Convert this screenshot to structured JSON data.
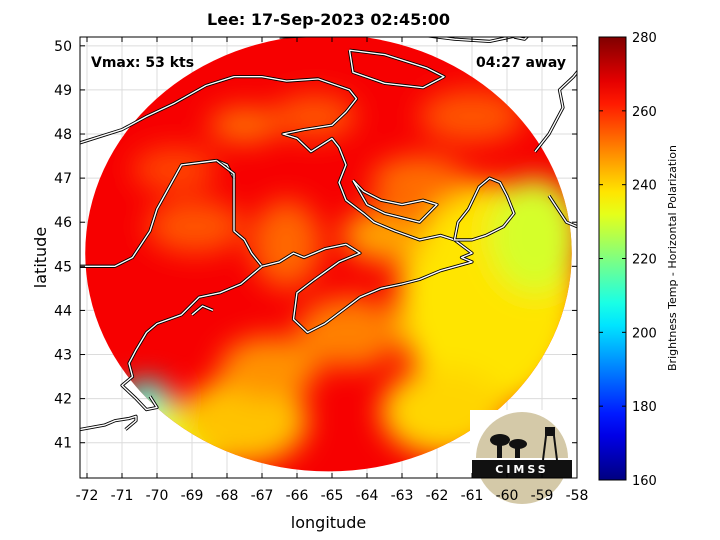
{
  "chart_data": {
    "type": "heatmap",
    "title": "Lee: 17-Sep-2023 02:45:00",
    "xlabel": "longitude",
    "ylabel": "latitude",
    "xlim": [
      -72.2,
      -58
    ],
    "ylim": [
      40.2,
      50.2
    ],
    "xticks": [
      -72,
      -71,
      -70,
      -69,
      -68,
      -67,
      -66,
      -65,
      -64,
      -63,
      -62,
      -61,
      -60,
      -59,
      -58
    ],
    "yticks": [
      41,
      42,
      43,
      44,
      45,
      46,
      47,
      48,
      49,
      50
    ],
    "grid": true,
    "annotations": {
      "left": "Vmax: 53 kts",
      "right": "04:27 away"
    },
    "colorbar": {
      "label": "Brightness Temp - Horizontal Polarization",
      "range": [
        160,
        280
      ],
      "ticks": [
        160,
        180,
        200,
        220,
        240,
        260,
        280
      ],
      "colormap": "jet",
      "placement": "right"
    },
    "swath": {
      "center_lon": -65.1,
      "center_lat": 45.3,
      "radius_lon": 6.95,
      "radius_lat": 4.95
    },
    "field_blobs": [
      {
        "lon": -70.3,
        "lat": 41.9,
        "r_lon": 0.7,
        "r_lat": 0.5,
        "value": 208
      },
      {
        "lon": -69.2,
        "lat": 41.1,
        "r_lon": 1.6,
        "r_lat": 0.8,
        "value": 232
      },
      {
        "lon": -67.5,
        "lat": 41.5,
        "r_lon": 1.8,
        "r_lat": 1.0,
        "value": 242
      },
      {
        "lon": -60.5,
        "lat": 44.3,
        "r_lon": 2.6,
        "r_lat": 2.6,
        "value": 238
      },
      {
        "lon": -59.2,
        "lat": 45.7,
        "r_lon": 1.3,
        "r_lat": 1.3,
        "value": 230
      },
      {
        "lon": -61.8,
        "lat": 41.7,
        "r_lon": 1.8,
        "r_lat": 1.0,
        "value": 240
      },
      {
        "lon": -63.5,
        "lat": 45.7,
        "r_lon": 1.2,
        "r_lat": 0.6,
        "value": 246
      },
      {
        "lon": -66.3,
        "lat": 45.5,
        "r_lon": 1.0,
        "r_lat": 1.0,
        "value": 253
      },
      {
        "lon": -68.9,
        "lat": 45.9,
        "r_lon": 1.4,
        "r_lat": 0.6,
        "value": 255
      },
      {
        "lon": -67.5,
        "lat": 48.2,
        "r_lon": 1.0,
        "r_lat": 0.4,
        "value": 252
      },
      {
        "lon": -69.5,
        "lat": 47.2,
        "r_lon": 1.2,
        "r_lat": 0.5,
        "value": 257
      },
      {
        "lon": -62.5,
        "lat": 46.9,
        "r_lon": 1.4,
        "r_lat": 0.6,
        "value": 252
      },
      {
        "lon": -61.0,
        "lat": 48.4,
        "r_lon": 1.5,
        "r_lat": 0.6,
        "value": 255
      },
      {
        "lon": -65.5,
        "lat": 48.4,
        "r_lon": 1.2,
        "r_lat": 0.5,
        "value": 255
      },
      {
        "lon": -64.5,
        "lat": 43.5,
        "r_lon": 1.5,
        "r_lat": 0.8,
        "value": 250
      },
      {
        "lon": -66.8,
        "lat": 42.7,
        "r_lon": 1.4,
        "r_lat": 0.7,
        "value": 248
      }
    ],
    "field_base_value": 266,
    "coastlines": [
      [
        [
          -72.2,
          45.0
        ],
        [
          -71.2,
          45.0
        ],
        [
          -70.7,
          45.2
        ],
        [
          -70.2,
          45.8
        ],
        [
          -70.0,
          46.3
        ],
        [
          -69.3,
          47.3
        ],
        [
          -68.3,
          47.4
        ],
        [
          -68.0,
          47.3
        ],
        [
          -67.8,
          47.0
        ],
        [
          -67.8,
          45.8
        ],
        [
          -67.5,
          45.6
        ],
        [
          -67.3,
          45.3
        ],
        [
          -67.0,
          45.0
        ]
      ],
      [
        [
          -67.0,
          45.0
        ],
        [
          -67.6,
          44.6
        ],
        [
          -68.2,
          44.4
        ],
        [
          -68.8,
          44.3
        ],
        [
          -69.3,
          43.9
        ],
        [
          -70.0,
          43.7
        ],
        [
          -70.3,
          43.5
        ],
        [
          -70.6,
          43.1
        ],
        [
          -70.8,
          42.8
        ],
        [
          -70.7,
          42.5
        ],
        [
          -71.0,
          42.3
        ],
        [
          -70.6,
          42.0
        ],
        [
          -70.3,
          41.75
        ],
        [
          -70.0,
          41.8
        ],
        [
          -70.2,
          42.05
        ]
      ],
      [
        [
          -72.2,
          41.3
        ],
        [
          -71.5,
          41.4
        ],
        [
          -71.2,
          41.5
        ],
        [
          -70.8,
          41.55
        ],
        [
          -70.6,
          41.6
        ],
        [
          -70.6,
          41.5
        ],
        [
          -70.9,
          41.3
        ]
      ],
      [
        [
          -71.2,
          45.0
        ],
        [
          -71.5,
          45.0
        ],
        [
          -72.2,
          45.0
        ]
      ],
      [
        [
          -72.2,
          47.8
        ],
        [
          -71.0,
          48.1
        ],
        [
          -70.3,
          48.4
        ],
        [
          -69.5,
          48.7
        ],
        [
          -68.6,
          49.1
        ],
        [
          -67.8,
          49.3
        ],
        [
          -67.0,
          49.3
        ],
        [
          -66.3,
          49.2
        ],
        [
          -65.4,
          49.25
        ],
        [
          -64.5,
          49.0
        ],
        [
          -64.3,
          48.8
        ],
        [
          -64.6,
          48.5
        ],
        [
          -65.0,
          48.2
        ],
        [
          -65.8,
          48.1
        ],
        [
          -66.4,
          48.0
        ],
        [
          -66.0,
          47.9
        ],
        [
          -65.6,
          47.6
        ],
        [
          -65.0,
          47.9
        ],
        [
          -64.8,
          47.7
        ],
        [
          -64.6,
          47.3
        ],
        [
          -64.8,
          46.9
        ],
        [
          -64.6,
          46.5
        ],
        [
          -64.1,
          46.2
        ],
        [
          -63.8,
          46.0
        ],
        [
          -63.2,
          45.8
        ],
        [
          -62.5,
          45.6
        ],
        [
          -61.9,
          45.7
        ],
        [
          -61.5,
          45.6
        ],
        [
          -61.0,
          45.3
        ],
        [
          -61.3,
          45.2
        ],
        [
          -61.0,
          45.1
        ],
        [
          -61.9,
          44.9
        ],
        [
          -62.5,
          44.7
        ],
        [
          -63.0,
          44.6
        ],
        [
          -63.6,
          44.5
        ],
        [
          -64.2,
          44.3
        ],
        [
          -64.7,
          44.0
        ],
        [
          -65.2,
          43.7
        ],
        [
          -65.7,
          43.5
        ],
        [
          -66.1,
          43.8
        ],
        [
          -66.0,
          44.4
        ],
        [
          -65.5,
          44.7
        ],
        [
          -64.8,
          45.1
        ],
        [
          -64.2,
          45.3
        ],
        [
          -64.6,
          45.5
        ],
        [
          -65.2,
          45.4
        ],
        [
          -65.8,
          45.2
        ],
        [
          -66.1,
          45.3
        ],
        [
          -66.5,
          45.1
        ],
        [
          -67.0,
          45.0
        ]
      ],
      [
        [
          -67.8,
          47.0
        ],
        [
          -67.8,
          47.1
        ],
        [
          -68.3,
          47.4
        ]
      ],
      [
        [
          -64.4,
          46.95
        ],
        [
          -64.1,
          46.7
        ],
        [
          -63.6,
          46.5
        ],
        [
          -63.0,
          46.4
        ],
        [
          -62.4,
          46.5
        ],
        [
          -62.0,
          46.4
        ],
        [
          -62.5,
          46.0
        ],
        [
          -63.0,
          46.1
        ],
        [
          -63.5,
          46.2
        ],
        [
          -64.0,
          46.4
        ],
        [
          -64.4,
          46.95
        ]
      ],
      [
        [
          -61.5,
          45.6
        ],
        [
          -61.4,
          46.0
        ],
        [
          -61.1,
          46.3
        ],
        [
          -60.8,
          46.8
        ],
        [
          -60.5,
          47.0
        ],
        [
          -60.2,
          46.9
        ],
        [
          -60.0,
          46.6
        ],
        [
          -59.8,
          46.2
        ],
        [
          -60.1,
          45.9
        ],
        [
          -60.6,
          45.7
        ],
        [
          -61.0,
          45.6
        ],
        [
          -61.5,
          45.6
        ]
      ],
      [
        [
          -64.5,
          49.9
        ],
        [
          -63.5,
          49.8
        ],
        [
          -62.3,
          49.5
        ],
        [
          -61.8,
          49.3
        ],
        [
          -62.4,
          49.05
        ],
        [
          -63.5,
          49.15
        ],
        [
          -64.4,
          49.4
        ],
        [
          -64.5,
          49.9
        ]
      ],
      [
        [
          -66.5,
          50.2
        ],
        [
          -65.0,
          50.25
        ],
        [
          -63.8,
          50.25
        ],
        [
          -62.5,
          50.25
        ],
        [
          -61.5,
          50.15
        ],
        [
          -60.5,
          50.1
        ],
        [
          -59.6,
          50.25
        ],
        [
          -58.8,
          50.6
        ]
      ],
      [
        [
          -59.2,
          47.6
        ],
        [
          -58.8,
          48.0
        ],
        [
          -58.6,
          48.3
        ],
        [
          -58.4,
          48.6
        ],
        [
          -58.5,
          49.0
        ],
        [
          -58.1,
          49.3
        ],
        [
          -57.9,
          49.5
        ]
      ],
      [
        [
          -59.8,
          50.2
        ],
        [
          -59.5,
          50.15
        ],
        [
          -59.3,
          50.3
        ]
      ],
      [
        [
          -58.8,
          46.6
        ],
        [
          -58.3,
          46.0
        ],
        [
          -58.0,
          45.9
        ]
      ],
      [
        [
          -69.0,
          43.9
        ],
        [
          -68.7,
          44.1
        ],
        [
          -68.4,
          44.0
        ]
      ]
    ]
  }
}
